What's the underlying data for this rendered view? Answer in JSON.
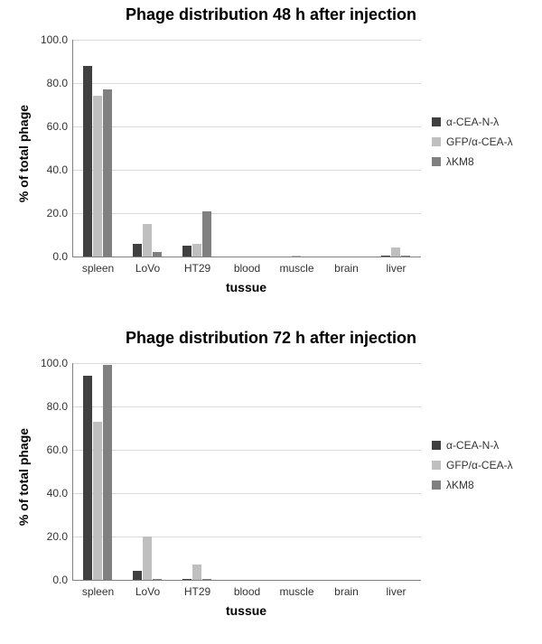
{
  "panels": [
    {
      "title": "Phage distribution  48 h after injection",
      "title_fontsize": 18,
      "type": "bar",
      "ylim": [
        0,
        100
      ],
      "ytick_step": 20,
      "categories": [
        "spleen",
        "LoVo",
        "HT29",
        "blood",
        "muscle",
        "brain",
        "liver"
      ],
      "series": [
        {
          "name": "α-CEA-N-λ",
          "color": "#404040",
          "values": [
            88,
            6,
            5,
            0,
            0,
            0,
            0.5
          ]
        },
        {
          "name": "GFP/α-CEA-λ",
          "color": "#bfbfbf",
          "values": [
            74,
            15,
            6,
            0,
            0.5,
            0,
            4
          ]
        },
        {
          "name": "λKM8",
          "color": "#808080",
          "values": [
            77,
            2,
            21,
            0,
            0,
            0,
            0.5
          ]
        }
      ],
      "ylabel": "% of total phage",
      "xlabel": "tussue",
      "label_fontsize": 14,
      "tick_fontsize": 12,
      "background_color": "#ffffff",
      "grid_color": "#d9d9d9",
      "axis_color": "#808080",
      "bar_group_width": 0.6
    },
    {
      "title": "Phage distribution  72 h after injection",
      "title_fontsize": 18,
      "type": "bar",
      "ylim": [
        0,
        100
      ],
      "ytick_step": 20,
      "categories": [
        "spleen",
        "LoVo",
        "HT29",
        "blood",
        "muscle",
        "brain",
        "liver"
      ],
      "series": [
        {
          "name": "α-CEA-N-λ",
          "color": "#404040",
          "values": [
            94,
            4,
            0.5,
            0,
            0,
            0,
            0
          ]
        },
        {
          "name": "GFP/α-CEA-λ",
          "color": "#bfbfbf",
          "values": [
            73,
            20,
            7,
            0,
            0,
            0,
            0
          ]
        },
        {
          "name": "λKM8",
          "color": "#808080",
          "values": [
            99,
            0.5,
            0.5,
            0,
            0,
            0,
            0
          ]
        }
      ],
      "ylabel": "% of total phage",
      "xlabel": "tussue",
      "label_fontsize": 14,
      "tick_fontsize": 12,
      "background_color": "#ffffff",
      "grid_color": "#d9d9d9",
      "axis_color": "#808080",
      "bar_group_width": 0.6
    }
  ]
}
